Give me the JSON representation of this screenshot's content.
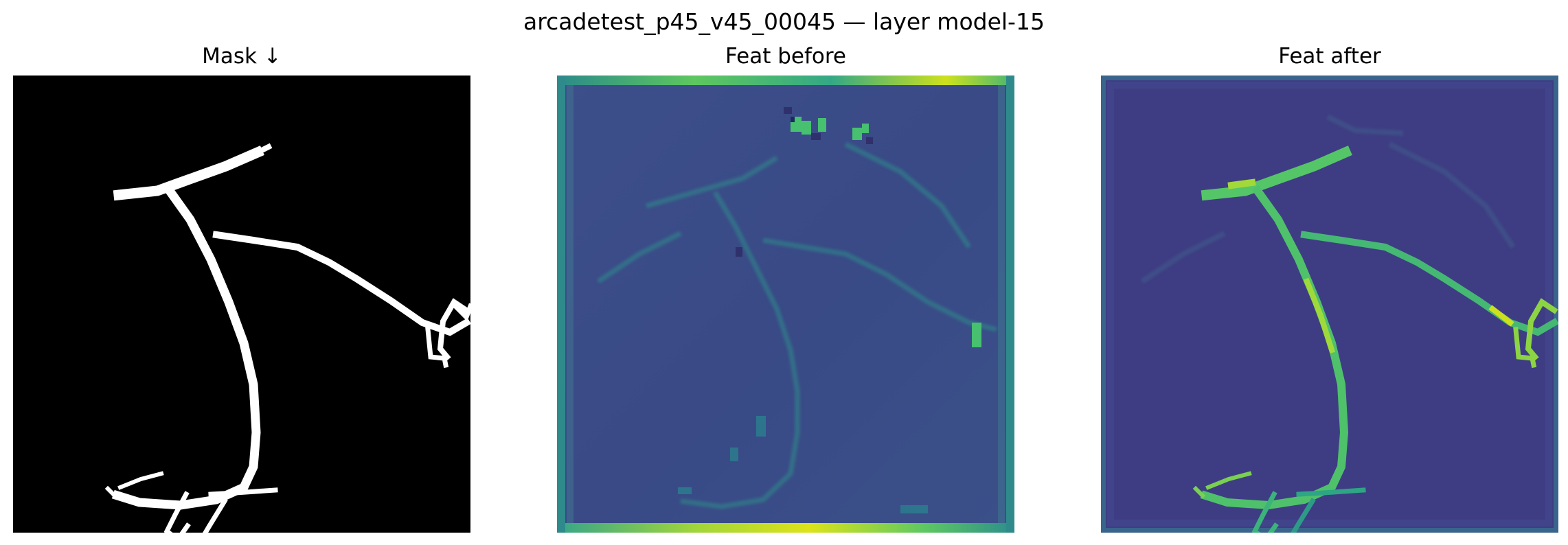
{
  "figure": {
    "title": "arcadetest_p45_v45_00045 — layer model-15"
  },
  "panels": [
    {
      "title": "Mask ↓",
      "kind": "binary-mask",
      "colormap": "gray"
    },
    {
      "title": "Feat before",
      "kind": "feature-map",
      "colormap": "viridis"
    },
    {
      "title": "Feat after",
      "kind": "feature-map",
      "colormap": "viridis"
    }
  ],
  "colors": {
    "mask_background": "#000000",
    "mask_vessel": "#ffffff",
    "viridis_low": "#3b2b73",
    "viridis_mid_low": "#3e4e8a",
    "viridis_mid": "#2a788e",
    "viridis_high": "#35b779",
    "viridis_max": "#cde11d"
  }
}
